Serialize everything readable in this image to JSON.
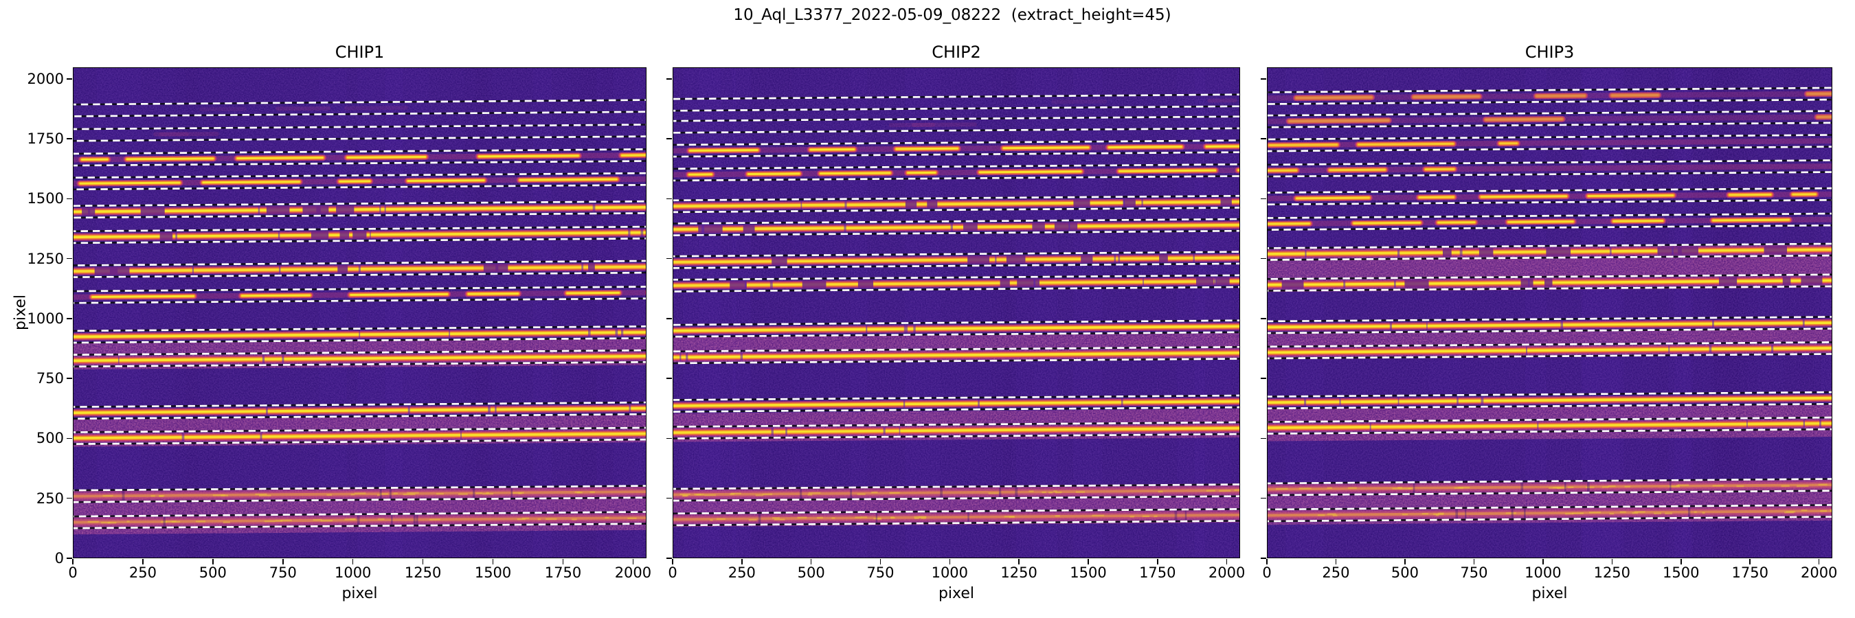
{
  "figure": {
    "title": "10_Aql_L3377_2022-05-09_08222  (extract_height=45)",
    "background": "#ffffff",
    "text_color": "#000000"
  },
  "axes": {
    "xlabel": "pixel",
    "ylabel": "pixel",
    "xlim": [
      0,
      2048
    ],
    "ylim": [
      0,
      2048
    ],
    "xticks": [
      0,
      250,
      500,
      750,
      1000,
      1250,
      1500,
      1750,
      2000
    ],
    "yticks": [
      0,
      250,
      500,
      750,
      1000,
      1250,
      1500,
      1750,
      2000
    ]
  },
  "chart_data": {
    "type": "heatmap",
    "title": "10_Aql_L3377_2022-05-09_08222  (extract_height=45)",
    "extract_height": 45,
    "colormap": "plasma-like",
    "palette": {
      "background": "#2a0c72",
      "glow_pink": "#993083",
      "band_edge_pink": "#c13a72",
      "band_orange": "#f07f2e",
      "band_yellow": "#f8e32b",
      "dash_white": "#ffffff",
      "dash_dark": "#0d0d16"
    },
    "chips": [
      {
        "name": "CHIP1",
        "orders": [
          {
            "y": 1880,
            "style": "empty",
            "intensity": 0.08
          },
          {
            "y": 1777,
            "style": "empty",
            "intensity": 0.1
          },
          {
            "y": 1674,
            "style": "patchy",
            "intensity": 0.8
          },
          {
            "y": 1574,
            "style": "patchy",
            "intensity": 0.8
          },
          {
            "y": 1456,
            "style": "semi",
            "intensity": 0.95
          },
          {
            "y": 1350,
            "style": "semi",
            "intensity": 0.95
          },
          {
            "y": 1207,
            "style": "semi",
            "intensity": 0.85
          },
          {
            "y": 1099,
            "style": "patchy",
            "intensity": 0.8
          },
          {
            "y": 933,
            "style": "solid",
            "intensity": 1.0
          },
          {
            "y": 833,
            "style": "solid",
            "intensity": 1.0
          },
          {
            "y": 615,
            "style": "solid",
            "intensity": 1.0
          },
          {
            "y": 509,
            "style": "solid",
            "intensity": 0.9
          },
          {
            "y": 266,
            "style": "pink",
            "intensity": 0.65
          },
          {
            "y": 157,
            "style": "pink",
            "intensity": 0.65
          }
        ],
        "glow_zones": [
          [
            908,
            796
          ],
          [
            587,
            473
          ],
          [
            289,
            106
          ]
        ]
      },
      {
        "name": "CHIP2",
        "orders": [
          {
            "y": 1903,
            "style": "empty",
            "intensity": 0.12
          },
          {
            "y": 1811,
            "style": "empty",
            "intensity": 0.15
          },
          {
            "y": 1711,
            "style": "patchy",
            "intensity": 0.8
          },
          {
            "y": 1611,
            "style": "patchy",
            "intensity": 0.8
          },
          {
            "y": 1479,
            "style": "semi",
            "intensity": 0.9
          },
          {
            "y": 1382,
            "style": "semi",
            "intensity": 0.9
          },
          {
            "y": 1245,
            "style": "semi",
            "intensity": 0.85
          },
          {
            "y": 1147,
            "style": "semi",
            "intensity": 0.85
          },
          {
            "y": 958,
            "style": "solid",
            "intensity": 1.0
          },
          {
            "y": 847,
            "style": "solid",
            "intensity": 1.0
          },
          {
            "y": 644,
            "style": "solid",
            "intensity": 0.95
          },
          {
            "y": 532,
            "style": "solid",
            "intensity": 0.9
          },
          {
            "y": 272,
            "style": "pink",
            "intensity": 0.65
          },
          {
            "y": 169,
            "style": "pink",
            "intensity": 0.65
          }
        ],
        "glow_zones": [
          [
            931,
            819
          ],
          [
            613,
            493
          ],
          [
            301,
            137
          ]
        ]
      },
      {
        "name": "CHIP3",
        "orders": [
          {
            "y": 1931,
            "style": "faint",
            "intensity": 0.35
          },
          {
            "y": 1834,
            "style": "faint",
            "intensity": 0.4
          },
          {
            "y": 1734,
            "style": "patchy",
            "intensity": 0.55
          },
          {
            "y": 1628,
            "style": "patchy",
            "intensity": 0.6
          },
          {
            "y": 1511,
            "style": "patchy",
            "intensity": 0.7
          },
          {
            "y": 1405,
            "style": "patchy",
            "intensity": 0.75
          },
          {
            "y": 1279,
            "style": "semi",
            "intensity": 0.9
          },
          {
            "y": 1150,
            "style": "semi",
            "intensity": 1.0
          },
          {
            "y": 973,
            "style": "solid",
            "intensity": 1.0
          },
          {
            "y": 867,
            "style": "solid",
            "intensity": 1.0
          },
          {
            "y": 658,
            "style": "solid",
            "intensity": 0.95
          },
          {
            "y": 552,
            "style": "solid",
            "intensity": 0.9
          },
          {
            "y": 295,
            "style": "pink",
            "intensity": 0.7
          },
          {
            "y": 186,
            "style": "pink",
            "intensity": 0.7
          }
        ],
        "glow_zones": [
          [
            1300,
            1120
          ],
          [
            954,
            839
          ],
          [
            636,
            496
          ],
          [
            321,
            146
          ]
        ]
      }
    ]
  }
}
